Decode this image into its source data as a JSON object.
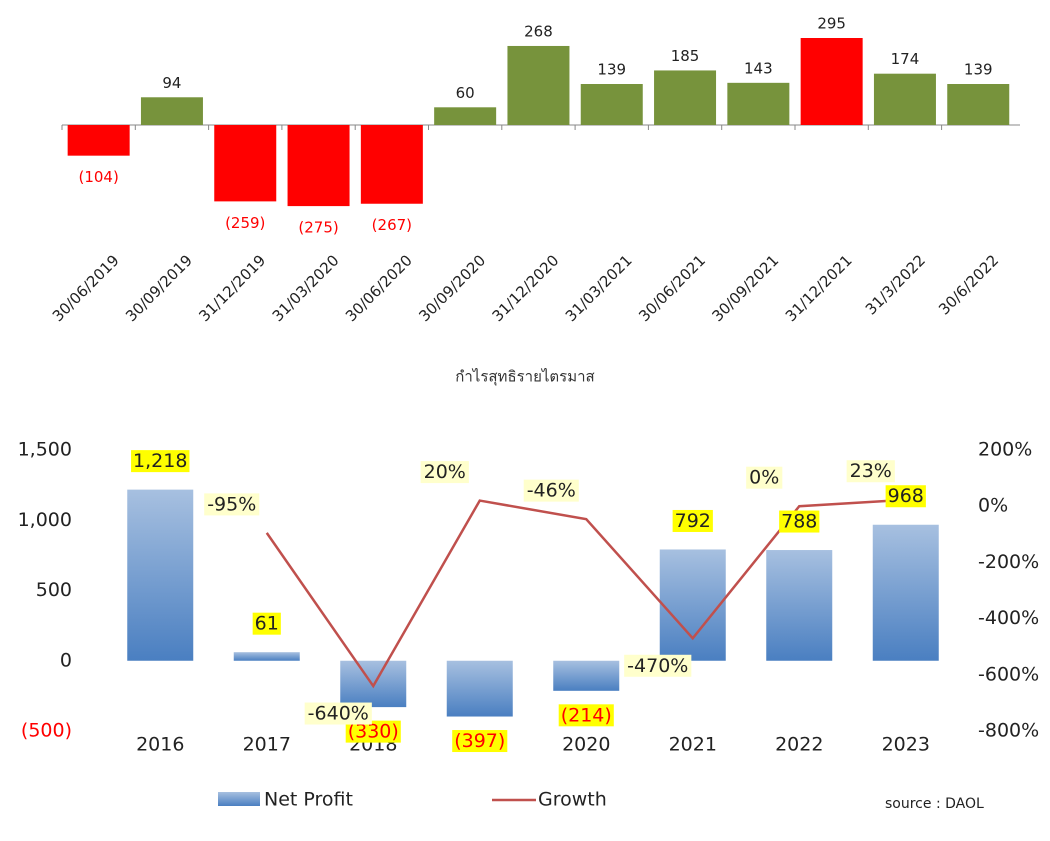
{
  "chart_data": [
    {
      "type": "bar",
      "x_label": "กำไรสุทธิรายไตรมาส",
      "categories": [
        "30/06/2019",
        "30/09/2019",
        "31/12/2019",
        "31/03/2020",
        "30/06/2020",
        "30/09/2020",
        "31/12/2020",
        "31/03/2021",
        "30/06/2021",
        "30/09/2021",
        "31/12/2021",
        "31/3/2022",
        "30/6/2022"
      ],
      "values": [
        -104,
        94,
        -259,
        -275,
        -267,
        60,
        268,
        139,
        185,
        143,
        295,
        174,
        139
      ],
      "value_labels": [
        "(104)",
        "94",
        "(259)",
        "(275)",
        "(267)",
        "60",
        "268",
        "139",
        "185",
        "143",
        "295",
        "174",
        "139"
      ],
      "colors": [
        "#ff0000",
        "#77933c",
        "#ff0000",
        "#ff0000",
        "#ff0000",
        "#77933c",
        "#77933c",
        "#77933c",
        "#77933c",
        "#77933c",
        "#ff0000",
        "#77933c",
        "#77933c"
      ]
    },
    {
      "type": "bar_line",
      "categories": [
        "2016",
        "2017",
        "2018",
        "2019",
        "2020",
        "2021",
        "2022",
        "2023"
      ],
      "series": [
        {
          "name": "Net Profit",
          "color": "#4f81bd",
          "values": [
            1218,
            61,
            -330,
            -397,
            -214,
            792,
            788,
            968
          ],
          "value_labels": [
            "1,218",
            "61",
            "(330)",
            "(397)",
            "(214)",
            "792",
            "788",
            "968"
          ]
        },
        {
          "name": "Growth",
          "color": "#c0504d",
          "axis": "y2",
          "values": [
            null,
            -95,
            -640,
            20,
            -46,
            -470,
            0,
            23
          ],
          "value_labels": [
            null,
            "-95%",
            "-640%",
            "20%",
            "-46%",
            "-470%",
            "0%",
            "23%"
          ]
        }
      ],
      "ylim": [
        -500,
        1500
      ],
      "yticks": [
        {
          "value": -500,
          "label": "(500)"
        },
        0,
        500,
        {
          "value": 1000,
          "label": "1,000"
        },
        {
          "value": 1500,
          "label": "1,500"
        }
      ],
      "y2lim": [
        -800,
        200
      ],
      "y2ticks": [
        {
          "value": -800,
          "label": "-800%"
        },
        {
          "value": -600,
          "label": "-600%"
        },
        {
          "value": -400,
          "label": "-400%"
        },
        {
          "value": -200,
          "label": "-200%"
        },
        {
          "value": 0,
          "label": "0%"
        },
        {
          "value": 200,
          "label": "200%"
        }
      ],
      "source": "source : DAOL"
    }
  ]
}
